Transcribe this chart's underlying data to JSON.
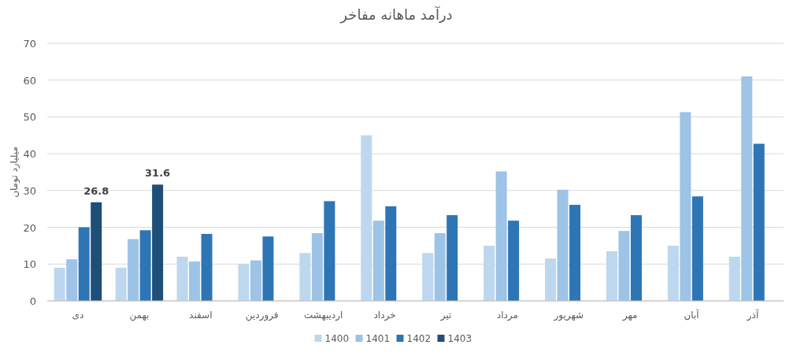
{
  "chart_data": {
    "type": "bar",
    "title": "درآمد ماهانه مفاخر",
    "ylabel": "میلیارد تومان",
    "categories": [
      "دی",
      "بهمن",
      "اسفند",
      "فروردین",
      "اردیبهشت",
      "خرداد",
      "تیر",
      "مرداد",
      "شهریور",
      "مهر",
      "آبان",
      "آذر"
    ],
    "series": [
      {
        "name": "1400",
        "color": "#bdd7ee",
        "values": [
          9,
          9,
          12,
          10,
          13,
          45,
          13,
          15,
          11.5,
          13.5,
          15,
          12
        ]
      },
      {
        "name": "1401",
        "color": "#9dc3e6",
        "values": [
          11.3,
          16.8,
          10.7,
          11,
          18.4,
          21.8,
          18.4,
          35.2,
          30.2,
          19,
          51.3,
          61
        ]
      },
      {
        "name": "1402",
        "color": "#2e75b6",
        "values": [
          20,
          19.2,
          18.2,
          17.5,
          27.1,
          25.7,
          23.3,
          21.8,
          26.1,
          23.3,
          28.4,
          42.7
        ]
      },
      {
        "name": "1403",
        "color": "#1f4e79",
        "values": [
          26.8,
          31.6,
          null,
          null,
          null,
          null,
          null,
          null,
          null,
          null,
          null,
          null
        ],
        "value_labels": [
          "26.8",
          "31.6",
          null,
          null,
          null,
          null,
          null,
          null,
          null,
          null,
          null,
          null
        ]
      }
    ],
    "ylim": [
      0,
      70
    ],
    "yticks": [
      0,
      10,
      20,
      30,
      40,
      50,
      60,
      70
    ],
    "grid": "y",
    "legend": "bottom"
  }
}
